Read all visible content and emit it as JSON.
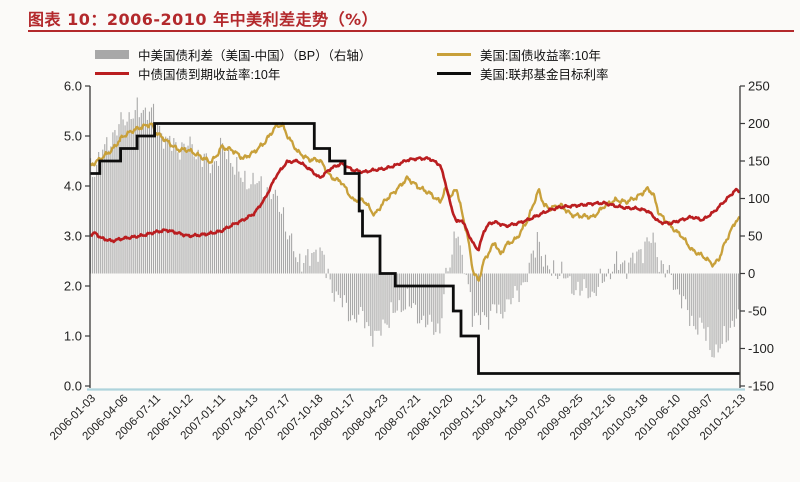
{
  "title": "图表 10：2006-2010 年中美利差走势（%）",
  "legend": [
    {
      "label": "中美国债利差（美国-中国）（BP）（右轴）",
      "color": "#a8a8a8",
      "swatch": "bar"
    },
    {
      "label": "美国:国债收益率:10年",
      "color": "#c8a03a",
      "swatch": "line"
    },
    {
      "label": "中债国债到期收益率:10年",
      "color": "#ba1e20",
      "swatch": "line"
    },
    {
      "label": "美国:联邦基金目标利率",
      "color": "#0d0d0d",
      "swatch": "line"
    }
  ],
  "chart_data": {
    "type": "mixed",
    "title": "图表 10：2006-2010 年中美利差走势（%）",
    "x_tick_labels": [
      "2006-01-03",
      "2006-04-06",
      "2006-07-11",
      "2006-10-12",
      "2007-01-11",
      "2007-04-13",
      "2007-07-17",
      "2007-10-18",
      "2008-01-17",
      "2008-04-23",
      "2008-07-21",
      "2008-10-20",
      "2009-01-12",
      "2009-04-13",
      "2009-07-03",
      "2009-09-25",
      "2009-12-16",
      "2010-03-18",
      "2010-06-10",
      "2010-09-07",
      "2010-12-13"
    ],
    "x_range_months": 59.4,
    "left_axis": {
      "min": 0,
      "max": 6,
      "tick_labels": [
        "6.0",
        "5.0",
        "4.0",
        "3.0",
        "2.0",
        "1.0",
        "0.0"
      ],
      "unit": "%"
    },
    "right_axis": {
      "min": -150,
      "max": 250,
      "tick_labels": [
        "250",
        "200",
        "150",
        "100",
        "50",
        "0",
        "-50",
        "-100",
        "-150"
      ],
      "unit": "BP"
    },
    "grid": false,
    "legend_position": "top",
    "series": [
      {
        "name": "美国:国债收益率:10年",
        "type": "line",
        "axis": "left",
        "color": "#c8a03a",
        "keypoints_months_value": [
          [
            0,
            4.4
          ],
          [
            1,
            4.55
          ],
          [
            2,
            4.72
          ],
          [
            3,
            4.99
          ],
          [
            4,
            5.12
          ],
          [
            5,
            5.2
          ],
          [
            5.6,
            5.24
          ],
          [
            6,
            5.08
          ],
          [
            7,
            4.9
          ],
          [
            8,
            4.73
          ],
          [
            9,
            4.72
          ],
          [
            10,
            4.6
          ],
          [
            11,
            4.48
          ],
          [
            11.5,
            4.58
          ],
          [
            12,
            4.78
          ],
          [
            13,
            4.72
          ],
          [
            14,
            4.55
          ],
          [
            15,
            4.68
          ],
          [
            16,
            4.88
          ],
          [
            17,
            5.2
          ],
          [
            17.6,
            5.22
          ],
          [
            18,
            5.02
          ],
          [
            19,
            4.68
          ],
          [
            20,
            4.53
          ],
          [
            21,
            4.52
          ],
          [
            22,
            4.18
          ],
          [
            23,
            4.08
          ],
          [
            24,
            3.72
          ],
          [
            25,
            3.72
          ],
          [
            26,
            3.42
          ],
          [
            27,
            3.72
          ],
          [
            28,
            3.92
          ],
          [
            29,
            4.16
          ],
          [
            30,
            3.98
          ],
          [
            31,
            3.86
          ],
          [
            32,
            3.68
          ],
          [
            32.5,
            3.95
          ],
          [
            33,
            3.78
          ],
          [
            33.5,
            3.96
          ],
          [
            34,
            3.45
          ],
          [
            34.5,
            3.0
          ],
          [
            35,
            2.3
          ],
          [
            35.5,
            2.1
          ],
          [
            36,
            2.5
          ],
          [
            37,
            2.88
          ],
          [
            37.5,
            2.62
          ],
          [
            38,
            2.82
          ],
          [
            39,
            2.95
          ],
          [
            40,
            3.32
          ],
          [
            41,
            3.92
          ],
          [
            41.5,
            3.62
          ],
          [
            42,
            3.55
          ],
          [
            43,
            3.62
          ],
          [
            44,
            3.42
          ],
          [
            45,
            3.4
          ],
          [
            46,
            3.38
          ],
          [
            47,
            3.6
          ],
          [
            48,
            3.72
          ],
          [
            49,
            3.68
          ],
          [
            50,
            3.78
          ],
          [
            51,
            3.95
          ],
          [
            51.5,
            3.82
          ],
          [
            52,
            3.45
          ],
          [
            53,
            3.22
          ],
          [
            53.5,
            3.1
          ],
          [
            54,
            3.02
          ],
          [
            55,
            2.72
          ],
          [
            56,
            2.6
          ],
          [
            57,
            2.42
          ],
          [
            57.5,
            2.55
          ],
          [
            58,
            2.85
          ],
          [
            59,
            3.3
          ],
          [
            59.4,
            3.35
          ]
        ]
      },
      {
        "name": "中债国债到期收益率:10年",
        "type": "line",
        "axis": "left",
        "color": "#ba1e20",
        "keypoints_months_value": [
          [
            0,
            3.02
          ],
          [
            0.5,
            3.06
          ],
          [
            1,
            2.96
          ],
          [
            2,
            2.9
          ],
          [
            3,
            2.95
          ],
          [
            4,
            2.98
          ],
          [
            5,
            3.02
          ],
          [
            6,
            3.08
          ],
          [
            7,
            3.12
          ],
          [
            8,
            3.06
          ],
          [
            9,
            3.0
          ],
          [
            10,
            3.02
          ],
          [
            11,
            3.05
          ],
          [
            12,
            3.1
          ],
          [
            13,
            3.22
          ],
          [
            14,
            3.32
          ],
          [
            15,
            3.45
          ],
          [
            16,
            3.75
          ],
          [
            17,
            4.2
          ],
          [
            18,
            4.48
          ],
          [
            19,
            4.5
          ],
          [
            20,
            4.35
          ],
          [
            21,
            4.16
          ],
          [
            22,
            4.35
          ],
          [
            23,
            4.45
          ],
          [
            24,
            4.32
          ],
          [
            25,
            4.28
          ],
          [
            26,
            4.32
          ],
          [
            27,
            4.35
          ],
          [
            28,
            4.42
          ],
          [
            29,
            4.52
          ],
          [
            30,
            4.55
          ],
          [
            31,
            4.55
          ],
          [
            32,
            4.42
          ],
          [
            32.5,
            4.05
          ],
          [
            33,
            3.58
          ],
          [
            33.5,
            3.28
          ],
          [
            34,
            3.32
          ],
          [
            34.5,
            3.08
          ],
          [
            35,
            2.85
          ],
          [
            35.5,
            2.72
          ],
          [
            36,
            3.1
          ],
          [
            36.5,
            3.25
          ],
          [
            37,
            3.28
          ],
          [
            38,
            3.2
          ],
          [
            39,
            3.25
          ],
          [
            40,
            3.32
          ],
          [
            41,
            3.42
          ],
          [
            42,
            3.52
          ],
          [
            43,
            3.58
          ],
          [
            44,
            3.6
          ],
          [
            45,
            3.62
          ],
          [
            46,
            3.65
          ],
          [
            47,
            3.66
          ],
          [
            48,
            3.6
          ],
          [
            49,
            3.56
          ],
          [
            50,
            3.55
          ],
          [
            51,
            3.5
          ],
          [
            52,
            3.28
          ],
          [
            53,
            3.25
          ],
          [
            54,
            3.32
          ],
          [
            55,
            3.38
          ],
          [
            56,
            3.32
          ],
          [
            57,
            3.48
          ],
          [
            58,
            3.7
          ],
          [
            59,
            3.92
          ],
          [
            59.4,
            3.9
          ]
        ]
      },
      {
        "name": "美国:联邦基金目标利率",
        "type": "step",
        "axis": "left",
        "color": "#0d0d0d",
        "keypoints_months_value": [
          [
            0,
            4.25
          ],
          [
            0.9,
            4.5
          ],
          [
            2.8,
            4.75
          ],
          [
            4.3,
            5.0
          ],
          [
            5.9,
            5.25
          ],
          [
            20.5,
            4.75
          ],
          [
            21.9,
            4.5
          ],
          [
            23.3,
            4.25
          ],
          [
            24.6,
            3.5
          ],
          [
            24.9,
            3.0
          ],
          [
            26.5,
            2.25
          ],
          [
            27.9,
            2.0
          ],
          [
            33.2,
            1.5
          ],
          [
            33.9,
            1.0
          ],
          [
            35.5,
            0.25
          ],
          [
            59.4,
            0.25
          ]
        ]
      },
      {
        "name": "中美国债利差（美国-中国）（BP）（右轴）",
        "type": "bar",
        "axis": "right",
        "color": "#a8a8a8",
        "derivation": "spread_bp = (US10Y - CN10Y) * 100"
      }
    ]
  }
}
